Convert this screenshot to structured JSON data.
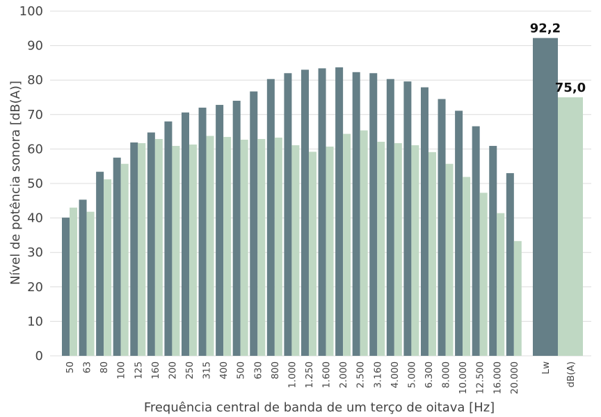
{
  "chart_data": {
    "type": "bar",
    "xlabel": "Frequência central de banda de um terço de oitava [Hz]",
    "ylabel": "Nível de potência sonora [dB(A)]",
    "ylim": [
      0,
      100
    ],
    "yticks": [
      0,
      10,
      20,
      30,
      40,
      50,
      60,
      70,
      80,
      90,
      100
    ],
    "grid": true,
    "categories": [
      "50",
      "63",
      "80",
      "100",
      "125",
      "160",
      "200",
      "250",
      "315",
      "400",
      "500",
      "630",
      "800",
      "1.000",
      "1.250",
      "1.600",
      "2.000",
      "2.500",
      "3.160",
      "4.000",
      "5.000",
      "6.300",
      "8.000",
      "10.000",
      "12.500",
      "16.000",
      "20.000"
    ],
    "series": [
      {
        "color": "#657f87",
        "values": [
          40.1,
          45.3,
          53.4,
          57.5,
          61.9,
          64.8,
          68.0,
          70.6,
          72.0,
          72.8,
          74.0,
          76.7,
          80.3,
          82.0,
          83.0,
          83.4,
          83.7,
          82.3,
          82.0,
          80.3,
          79.6,
          77.9,
          74.5,
          71.1,
          66.6,
          60.9,
          53.0
        ]
      },
      {
        "color": "#bfd8c3",
        "values": [
          43.0,
          41.8,
          51.2,
          55.7,
          61.7,
          62.9,
          60.9,
          61.3,
          63.8,
          63.5,
          62.7,
          62.9,
          63.3,
          61.1,
          59.2,
          60.7,
          64.4,
          65.4,
          62.1,
          61.7,
          61.1,
          59.1,
          55.7,
          51.9,
          47.3,
          41.4,
          33.3
        ]
      }
    ],
    "totals": {
      "categories": [
        "Lw",
        "dB(A)"
      ],
      "values": [
        92.2,
        75.0
      ],
      "labels": [
        "92,2",
        "75,0"
      ],
      "colors": [
        "#657f87",
        "#bfd8c3"
      ]
    }
  }
}
